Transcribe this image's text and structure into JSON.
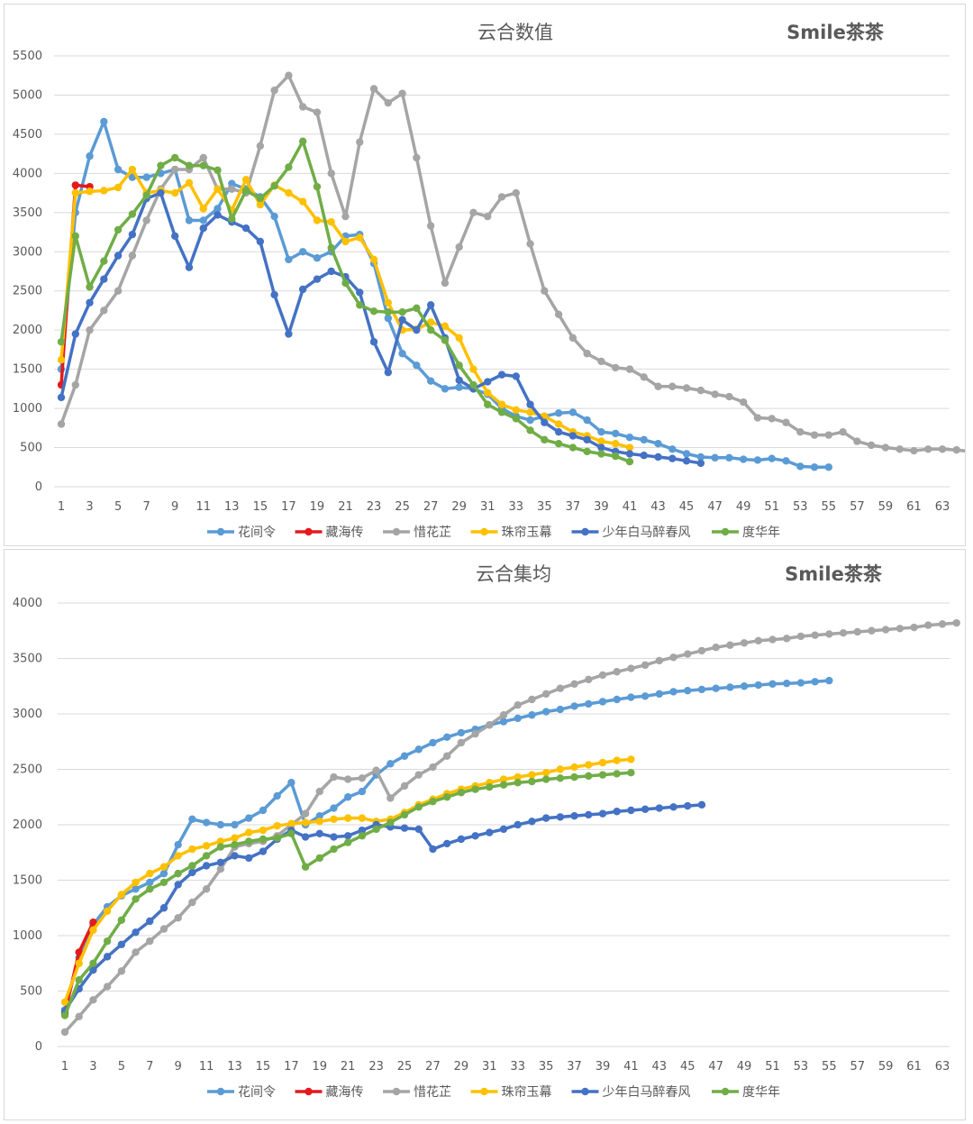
{
  "chart_data": [
    {
      "type": "line",
      "title": "云合数值",
      "brand": "Smile茶茶",
      "xlabel": "",
      "ylabel": "",
      "x_ticks": [
        1,
        3,
        5,
        7,
        9,
        11,
        13,
        15,
        17,
        19,
        21,
        23,
        25,
        27,
        29,
        31,
        33,
        35,
        37,
        39,
        41,
        43,
        45,
        47,
        49,
        51,
        53,
        55,
        57,
        59,
        61,
        63
      ],
      "y_ticks": [
        0,
        500,
        1000,
        1500,
        2000,
        2500,
        3000,
        3500,
        4000,
        4500,
        5000,
        5500
      ],
      "xlim": [
        1,
        63
      ],
      "ylim": [
        0,
        5500
      ],
      "grid": true,
      "legend_position": "bottom",
      "series": [
        {
          "name": "花间令",
          "color": "#5b9bd5",
          "values": [
            1500,
            3500,
            4220,
            4660,
            4050,
            3950,
            3950,
            4000,
            4050,
            3400,
            3400,
            3550,
            3870,
            3800,
            3700,
            3450,
            2900,
            3000,
            2920,
            3000,
            3200,
            3220,
            2850,
            2150,
            1700,
            1550,
            1350,
            1250,
            1270,
            1250,
            1180,
            1000,
            900,
            850,
            900,
            940,
            950,
            850,
            700,
            680,
            630,
            600,
            550,
            480,
            420,
            380,
            370,
            370,
            350,
            340,
            360,
            330,
            260,
            250,
            250
          ]
        },
        {
          "name": "藏海传",
          "color": "#e41a1c",
          "values": [
            1300,
            3850,
            3830
          ]
        },
        {
          "name": "惜花芷",
          "color": "#a5a5a5",
          "values": [
            800,
            1300,
            2000,
            2250,
            2500,
            2950,
            3400,
            3800,
            4050,
            4050,
            4200,
            3800,
            3800,
            3750,
            4350,
            5060,
            5250,
            4850,
            4780,
            4000,
            3450,
            4400,
            5080,
            4900,
            5020,
            4200,
            3330,
            2600,
            3060,
            3500,
            3450,
            3700,
            3750,
            3100,
            2500,
            2200,
            1900,
            1700,
            1600,
            1520,
            1500,
            1400,
            1280,
            1280,
            1260,
            1230,
            1180,
            1150,
            1080,
            880,
            870,
            820,
            700,
            660,
            660,
            700,
            580,
            530,
            500,
            480,
            460,
            480,
            480,
            470,
            450
          ]
        },
        {
          "name": "珠帘玉幕",
          "color": "#ffc000",
          "values": [
            1620,
            3750,
            3770,
            3780,
            3820,
            4050,
            3750,
            3780,
            3750,
            3880,
            3550,
            3800,
            3530,
            3920,
            3600,
            3850,
            3750,
            3640,
            3400,
            3380,
            3130,
            3180,
            2900,
            2350,
            2000,
            2010,
            2100,
            2050,
            1900,
            1500,
            1200,
            1050,
            980,
            950,
            900,
            800,
            700,
            650,
            580,
            550,
            500
          ]
        },
        {
          "name": "少年白马醉春风",
          "color": "#4472c4",
          "values": [
            1140,
            1950,
            2350,
            2650,
            2950,
            3220,
            3680,
            3750,
            3200,
            2800,
            3300,
            3470,
            3380,
            3300,
            3130,
            2450,
            1950,
            2520,
            2650,
            2750,
            2680,
            2480,
            1850,
            1460,
            2130,
            2000,
            2320,
            1900,
            1360,
            1250,
            1340,
            1430,
            1410,
            1050,
            820,
            700,
            650,
            600,
            500,
            450,
            420,
            400,
            380,
            360,
            330,
            300
          ]
        },
        {
          "name": "度华年",
          "color": "#70ad47",
          "values": [
            1850,
            3200,
            2550,
            2880,
            3280,
            3480,
            3720,
            4100,
            4200,
            4100,
            4100,
            4040,
            3420,
            3780,
            3680,
            3840,
            4080,
            4410,
            3830,
            3050,
            2600,
            2320,
            2240,
            2230,
            2230,
            2280,
            2000,
            1870,
            1550,
            1300,
            1050,
            950,
            870,
            720,
            600,
            550,
            500,
            450,
            420,
            390,
            320
          ]
        }
      ]
    },
    {
      "type": "line",
      "title": "云合集均",
      "brand": "Smile茶茶",
      "xlabel": "",
      "ylabel": "",
      "x_ticks": [
        1,
        3,
        5,
        7,
        9,
        11,
        13,
        15,
        17,
        19,
        21,
        23,
        25,
        27,
        29,
        31,
        33,
        35,
        37,
        39,
        41,
        43,
        45,
        47,
        49,
        51,
        53,
        55,
        57,
        59,
        61,
        63
      ],
      "y_ticks": [
        0,
        500,
        1000,
        1500,
        2000,
        2500,
        3000,
        3500,
        4000
      ],
      "xlim": [
        1,
        63
      ],
      "ylim": [
        0,
        4000
      ],
      "grid": true,
      "legend_position": "bottom",
      "series": [
        {
          "name": "花间令",
          "color": "#5b9bd5",
          "values": [
            330,
            800,
            1100,
            1260,
            1360,
            1420,
            1480,
            1560,
            1820,
            2050,
            2020,
            2000,
            2000,
            2060,
            2130,
            2260,
            2380,
            2000,
            2080,
            2150,
            2250,
            2300,
            2450,
            2550,
            2620,
            2680,
            2740,
            2790,
            2830,
            2860,
            2900,
            2930,
            2960,
            2990,
            3020,
            3040,
            3070,
            3090,
            3110,
            3130,
            3150,
            3160,
            3180,
            3200,
            3210,
            3220,
            3230,
            3240,
            3250,
            3260,
            3270,
            3275,
            3280,
            3290,
            3300
          ]
        },
        {
          "name": "藏海传",
          "color": "#e41a1c",
          "values": [
            300,
            850,
            1120
          ]
        },
        {
          "name": "惜花芷",
          "color": "#a5a5a5",
          "values": [
            130,
            270,
            420,
            540,
            680,
            850,
            950,
            1060,
            1160,
            1300,
            1420,
            1600,
            1800,
            1830,
            1850,
            1900,
            2000,
            2100,
            2300,
            2430,
            2410,
            2420,
            2490,
            2240,
            2350,
            2450,
            2520,
            2620,
            2740,
            2820,
            2900,
            2990,
            3080,
            3130,
            3180,
            3230,
            3270,
            3310,
            3350,
            3380,
            3410,
            3440,
            3480,
            3510,
            3540,
            3570,
            3600,
            3620,
            3640,
            3660,
            3670,
            3680,
            3700,
            3710,
            3720,
            3730,
            3740,
            3750,
            3760,
            3770,
            3780,
            3800,
            3810,
            3820
          ]
        },
        {
          "name": "珠帘玉幕",
          "color": "#ffc000",
          "values": [
            400,
            750,
            1050,
            1220,
            1370,
            1480,
            1560,
            1620,
            1720,
            1780,
            1810,
            1850,
            1880,
            1930,
            1950,
            1990,
            2010,
            2020,
            2030,
            2050,
            2060,
            2060,
            2030,
            2050,
            2110,
            2180,
            2230,
            2280,
            2320,
            2350,
            2380,
            2410,
            2430,
            2450,
            2470,
            2500,
            2520,
            2540,
            2560,
            2580,
            2590
          ]
        },
        {
          "name": "少年白马醉春风",
          "color": "#4472c4",
          "values": [
            320,
            520,
            690,
            810,
            920,
            1030,
            1130,
            1250,
            1460,
            1570,
            1630,
            1660,
            1720,
            1700,
            1760,
            1870,
            1950,
            1890,
            1920,
            1890,
            1900,
            1950,
            2000,
            1980,
            1970,
            1960,
            1780,
            1830,
            1870,
            1900,
            1930,
            1960,
            2000,
            2030,
            2060,
            2070,
            2080,
            2090,
            2100,
            2120,
            2130,
            2140,
            2150,
            2160,
            2170,
            2180
          ]
        },
        {
          "name": "度华年",
          "color": "#70ad47",
          "values": [
            280,
            600,
            750,
            950,
            1140,
            1330,
            1420,
            1480,
            1560,
            1630,
            1720,
            1800,
            1820,
            1850,
            1870,
            1880,
            1920,
            1620,
            1700,
            1780,
            1840,
            1900,
            1960,
            2020,
            2090,
            2160,
            2210,
            2250,
            2290,
            2320,
            2340,
            2360,
            2380,
            2390,
            2410,
            2420,
            2430,
            2440,
            2450,
            2460,
            2470
          ]
        }
      ]
    }
  ]
}
